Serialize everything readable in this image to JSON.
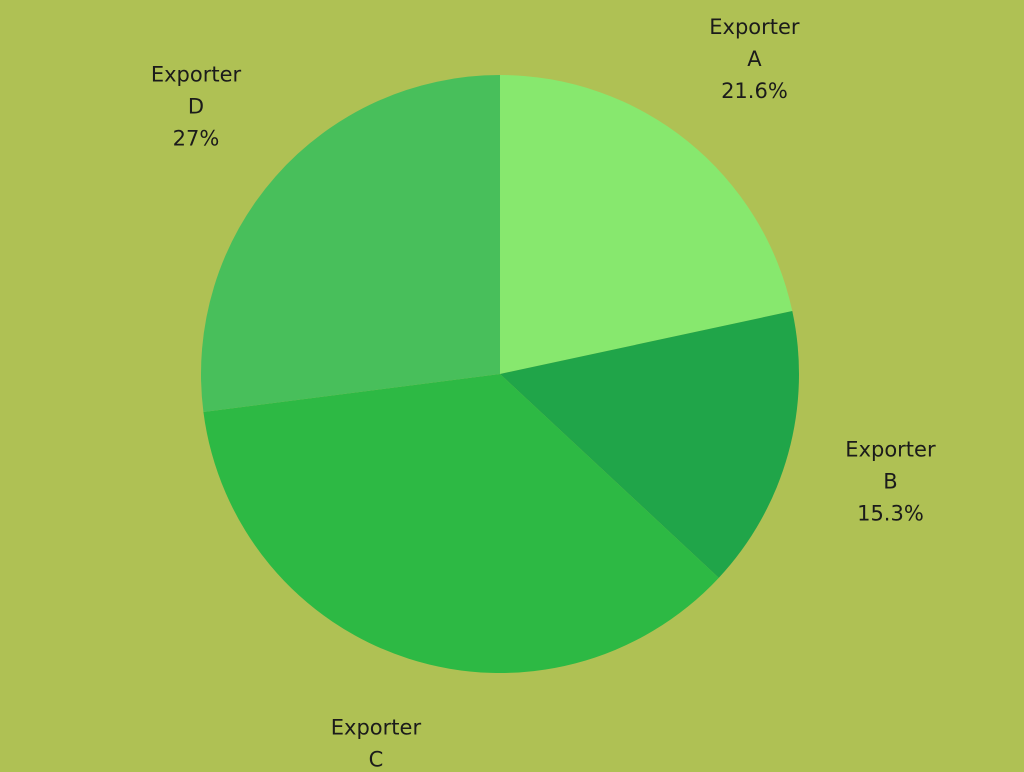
{
  "page": {
    "background_color": "#afc154"
  },
  "chart_data": {
    "type": "pie",
    "title": "",
    "start_direction": "top",
    "direction": "clockwise",
    "categories": [
      "Exporter A",
      "Exporter B",
      "Exporter C",
      "Exporter D"
    ],
    "values": [
      21.6,
      15.3,
      36,
      27
    ],
    "unit": "%",
    "slices": [
      {
        "name_line1": "Exporter",
        "name_line2": "A",
        "value_label": "21.6%",
        "value": 21.6,
        "color": "#87e86e"
      },
      {
        "name_line1": "Exporter",
        "name_line2": "B",
        "value_label": "15.3%",
        "value": 15.3,
        "color": "#20a549"
      },
      {
        "name_line1": "Exporter",
        "name_line2": "C",
        "value_label": "36%",
        "value": 36,
        "color": "#2db944"
      },
      {
        "name_line1": "Exporter",
        "name_line2": "D",
        "value_label": "27%",
        "value": 27,
        "color": "#48bf5b"
      }
    ],
    "legend": "none",
    "labels_position": "outside"
  }
}
